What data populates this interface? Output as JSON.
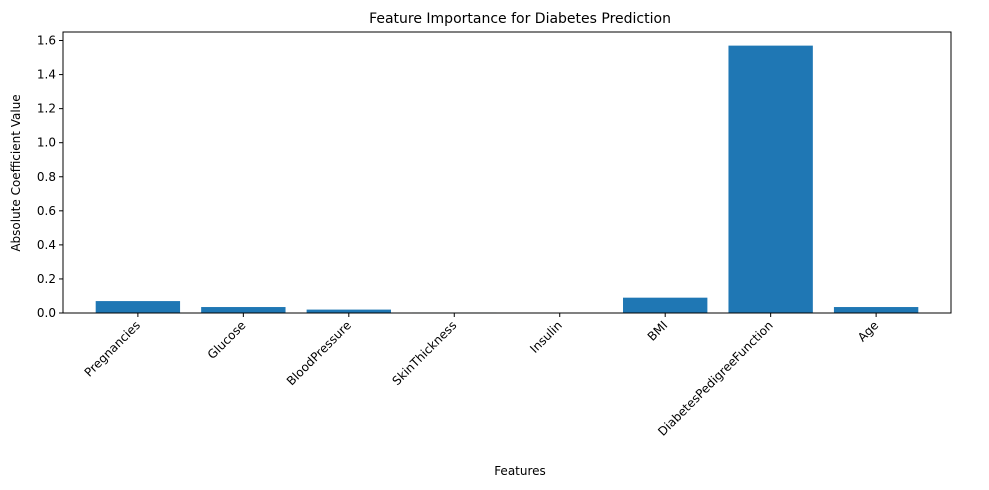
{
  "chart_data": {
    "type": "bar",
    "title": "Feature Importance for Diabetes Prediction",
    "xlabel": "Features",
    "ylabel": "Absolute Coefficient Value",
    "categories": [
      "Pregnancies",
      "Glucose",
      "BloodPressure",
      "SkinThickness",
      "Insulin",
      "BMI",
      "DiabetesPedigreeFunction",
      "Age"
    ],
    "values": [
      0.07,
      0.035,
      0.02,
      0.003,
      0.002,
      0.09,
      1.57,
      0.035
    ],
    "ylim": [
      0,
      1.65
    ],
    "yticks": [
      0.0,
      0.2,
      0.4,
      0.6,
      0.8,
      1.0,
      1.2,
      1.4,
      1.6
    ],
    "ytick_labels": [
      "0.0",
      "0.2",
      "0.4",
      "0.6",
      "0.8",
      "1.0",
      "1.2",
      "1.4",
      "1.6"
    ],
    "bar_color": "#1f77b4",
    "grid": false,
    "legend": "none"
  }
}
